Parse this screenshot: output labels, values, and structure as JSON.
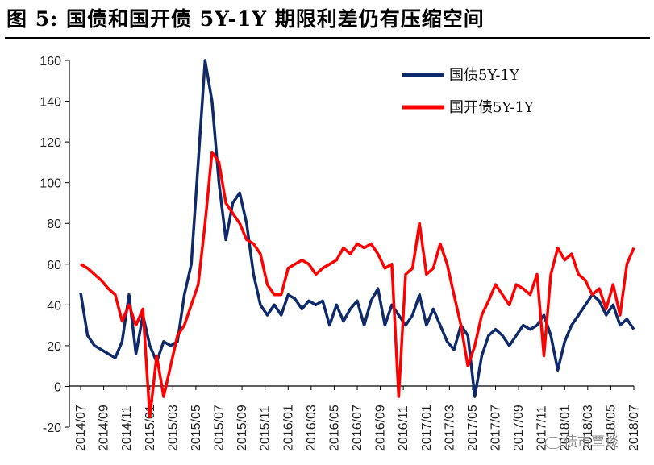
{
  "title": "图 5:  国债和国开债 5Y-1Y 期限利差仍有压缩空间",
  "watermark": "债市覃谈",
  "chart_data": {
    "type": "line",
    "title": "图 5:  国债和国开债 5Y-1Y 期限利差仍有压缩空间",
    "xlabel": "",
    "ylabel": "",
    "ylim": [
      -20,
      160
    ],
    "yticks": [
      -20,
      0,
      20,
      40,
      60,
      80,
      100,
      120,
      140,
      160
    ],
    "x_tick_labels": [
      "2014/07",
      "2014/09",
      "2014/11",
      "2015/01",
      "2015/03",
      "2015/05",
      "2015/07",
      "2015/09",
      "2015/11",
      "2016/01",
      "2016/03",
      "2016/05",
      "2016/07",
      "2016/09",
      "2016/11",
      "2017/01",
      "2017/03",
      "2017/05",
      "2017/07",
      "2017/09",
      "2017/11",
      "2018/01",
      "2018/03",
      "2018/05",
      "2018/07"
    ],
    "grid": false,
    "legend_position": "top-right",
    "series": [
      {
        "name": "国债5Y-1Y",
        "color": "#0f2a6b",
        "values": [
          46,
          25,
          20,
          18,
          16,
          14,
          22,
          45,
          16,
          35,
          20,
          12,
          22,
          20,
          22,
          45,
          60,
          110,
          160,
          140,
          100,
          72,
          90,
          95,
          80,
          55,
          40,
          35,
          40,
          35,
          45,
          43,
          38,
          42,
          40,
          42,
          30,
          40,
          32,
          38,
          42,
          30,
          42,
          48,
          30,
          40,
          35,
          30,
          35,
          45,
          30,
          38,
          30,
          22,
          18,
          30,
          25,
          -5,
          15,
          25,
          28,
          25,
          20,
          25,
          30,
          28,
          30,
          35,
          25,
          8,
          22,
          30,
          35,
          40,
          45,
          42,
          35,
          40,
          30,
          33,
          28
        ]
      },
      {
        "name": "国开债5Y-1Y",
        "color": "#ff0000",
        "values": [
          60,
          58,
          55,
          52,
          48,
          45,
          32,
          40,
          30,
          38,
          -15,
          15,
          -5,
          10,
          25,
          30,
          40,
          50,
          80,
          115,
          110,
          90,
          85,
          80,
          72,
          70,
          65,
          50,
          45,
          45,
          58,
          60,
          62,
          60,
          55,
          58,
          60,
          62,
          68,
          65,
          70,
          68,
          70,
          65,
          58,
          60,
          -5,
          55,
          58,
          80,
          55,
          58,
          70,
          60,
          45,
          30,
          10,
          20,
          35,
          42,
          50,
          45,
          40,
          50,
          48,
          45,
          55,
          15,
          55,
          68,
          62,
          65,
          55,
          52,
          45,
          48,
          38,
          50,
          35,
          60,
          68
        ]
      }
    ]
  }
}
